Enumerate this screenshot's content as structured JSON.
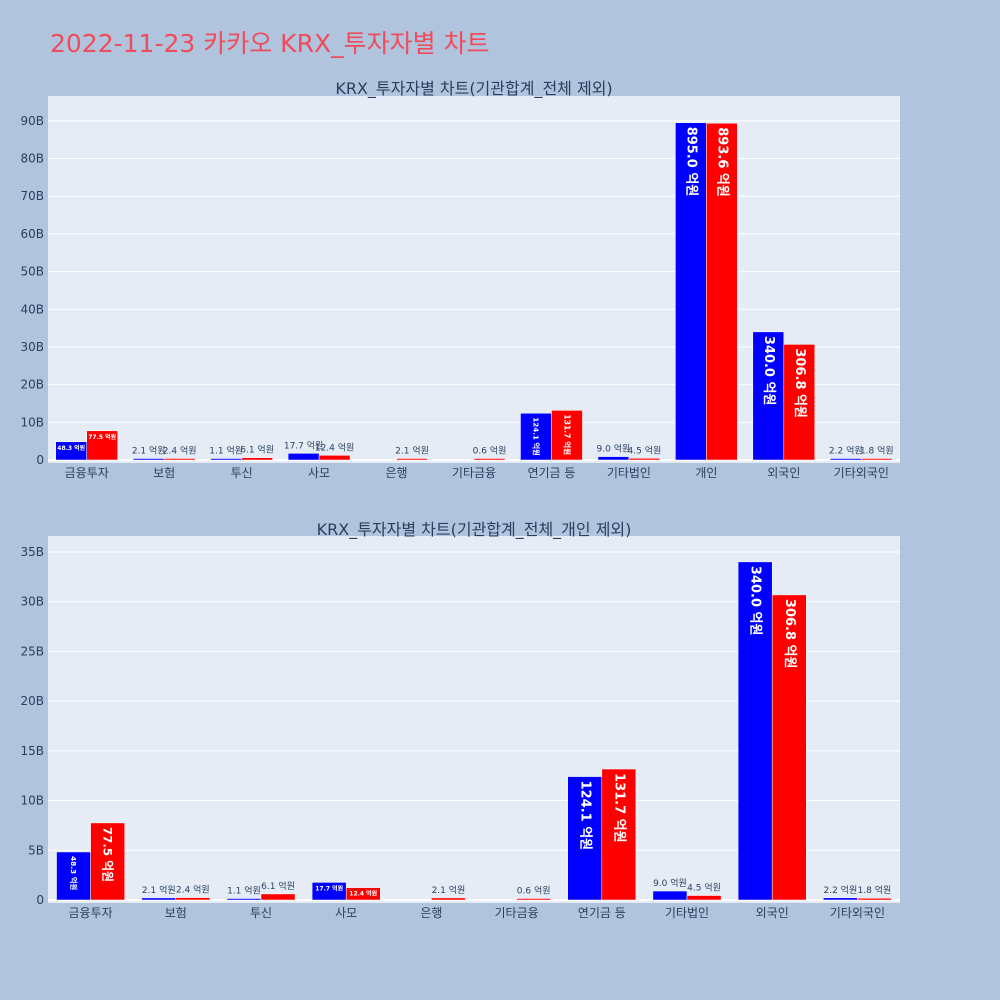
{
  "page": {
    "title": "2022-11-23 카카오 KRX_투자자별 차트"
  },
  "colors": {
    "background": "#b0c4de",
    "plot_background": "#e5ecf6",
    "title": "#ef4b5a",
    "series_1": "#0000ff",
    "series_2": "#ff0000",
    "text": "#2a3f5f"
  },
  "chart_data": [
    {
      "type": "bar",
      "title": "KRX_투자자별 차트(기관합계_전체 제외)",
      "categories": [
        "금융투자",
        "보험",
        "투신",
        "사모",
        "은행",
        "기타금융",
        "연기금 등",
        "기타법인",
        "개인",
        "외국인",
        "기타외국인"
      ],
      "series": [
        {
          "color": "#0000ff",
          "values": [
            4830000000.0,
            210000000.0,
            110000000.0,
            1770000000.0,
            0,
            0,
            12410000000.0,
            900000000.0,
            89500000000.0,
            34000000000.0,
            220000000.0
          ],
          "labels": [
            "48.3 억원",
            "2.1 억원",
            "1.1 억원",
            "17.7 억원",
            "",
            "",
            "124.1 억원",
            "9.0 억원",
            "895.0 억원",
            "340.0 억원",
            "2.2 억원"
          ]
        },
        {
          "color": "#ff0000",
          "values": [
            7750000000.0,
            240000000.0,
            610000000.0,
            1240000000.0,
            210000000.0,
            60000000.0,
            13170000000.0,
            450000000.0,
            89360000000.0,
            30680000000.0,
            180000000.0
          ],
          "labels": [
            "77.5 억원",
            "2.4 억원",
            "6.1 억원",
            "12.4 억원",
            "2.1 억원",
            "0.6 억원",
            "131.7 억원",
            "4.5 억원",
            "893.6 억원",
            "306.8 억원",
            "1.8 억원"
          ]
        }
      ],
      "ylim": [
        0,
        95000000000.0
      ],
      "yticks": [
        0,
        10000000000.0,
        20000000000.0,
        30000000000.0,
        40000000000.0,
        50000000000.0,
        60000000000.0,
        70000000000.0,
        80000000000.0,
        90000000000.0
      ],
      "ytick_labels": [
        "0",
        "10B",
        "20B",
        "30B",
        "40B",
        "50B",
        "60B",
        "70B",
        "80B",
        "90B"
      ],
      "grid": true
    },
    {
      "type": "bar",
      "title": "KRX_투자자별 차트(기관합계_전체_개인 제외)",
      "categories": [
        "금융투자",
        "보험",
        "투신",
        "사모",
        "은행",
        "기타금융",
        "연기금 등",
        "기타법인",
        "외국인",
        "기타외국인"
      ],
      "series": [
        {
          "color": "#0000ff",
          "values": [
            4830000000.0,
            210000000.0,
            110000000.0,
            1770000000.0,
            0,
            0,
            12410000000.0,
            900000000.0,
            34000000000.0,
            220000000.0
          ],
          "labels": [
            "48.3 억원",
            "2.1 억원",
            "1.1 억원",
            "17.7 억원",
            "",
            "",
            "124.1 억원",
            "9.0 억원",
            "340.0 억원",
            "2.2 억원"
          ]
        },
        {
          "color": "#ff0000",
          "values": [
            7750000000.0,
            240000000.0,
            610000000.0,
            1240000000.0,
            210000000.0,
            60000000.0,
            13170000000.0,
            450000000.0,
            30680000000.0,
            180000000.0
          ],
          "labels": [
            "77.5 억원",
            "2.4 억원",
            "6.1 억원",
            "12.4 억원",
            "2.1 억원",
            "0.6 억원",
            "131.7 억원",
            "4.5 억원",
            "306.8 억원",
            "1.8 억원"
          ]
        }
      ],
      "ylim": [
        0,
        36000000000.0
      ],
      "yticks": [
        0,
        5000000000.0,
        10000000000.0,
        15000000000.0,
        20000000000.0,
        25000000000.0,
        30000000000.0,
        35000000000.0
      ],
      "ytick_labels": [
        "0",
        "5B",
        "10B",
        "15B",
        "20B",
        "25B",
        "30B",
        "35B"
      ],
      "grid": true
    }
  ]
}
